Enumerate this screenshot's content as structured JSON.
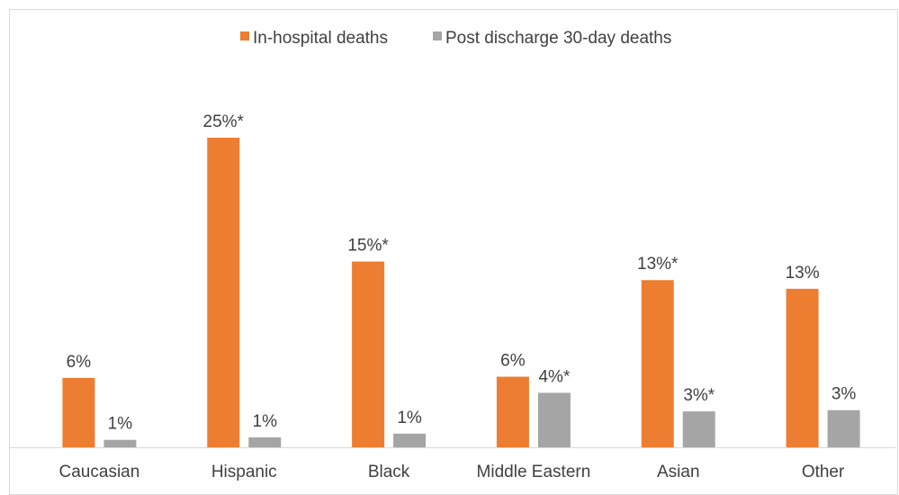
{
  "chart_data": {
    "type": "bar",
    "title": "",
    "xlabel": "",
    "ylabel": "",
    "ylim": [
      0,
      26
    ],
    "grid": false,
    "legend_position": "top-center",
    "categories": [
      "Caucasian",
      "Hispanic",
      "Black",
      "Middle Eastern",
      "Asian",
      "Other"
    ],
    "series": [
      {
        "name": "In-hospital deaths",
        "color": "#ed7d31",
        "values": [
          5.6,
          25,
          15,
          5.7,
          13.5,
          12.8
        ],
        "labels": [
          "6%",
          "25%*",
          "15%*",
          "6%",
          "13%*",
          "13%"
        ]
      },
      {
        "name": "Post discharge 30-day deaths",
        "color": "#a5a5a5",
        "values": [
          0.6,
          0.8,
          1.1,
          4.4,
          2.9,
          3.0
        ],
        "labels": [
          "1%",
          "1%",
          "1%",
          "4%*",
          "3%*",
          "3%"
        ]
      }
    ]
  }
}
